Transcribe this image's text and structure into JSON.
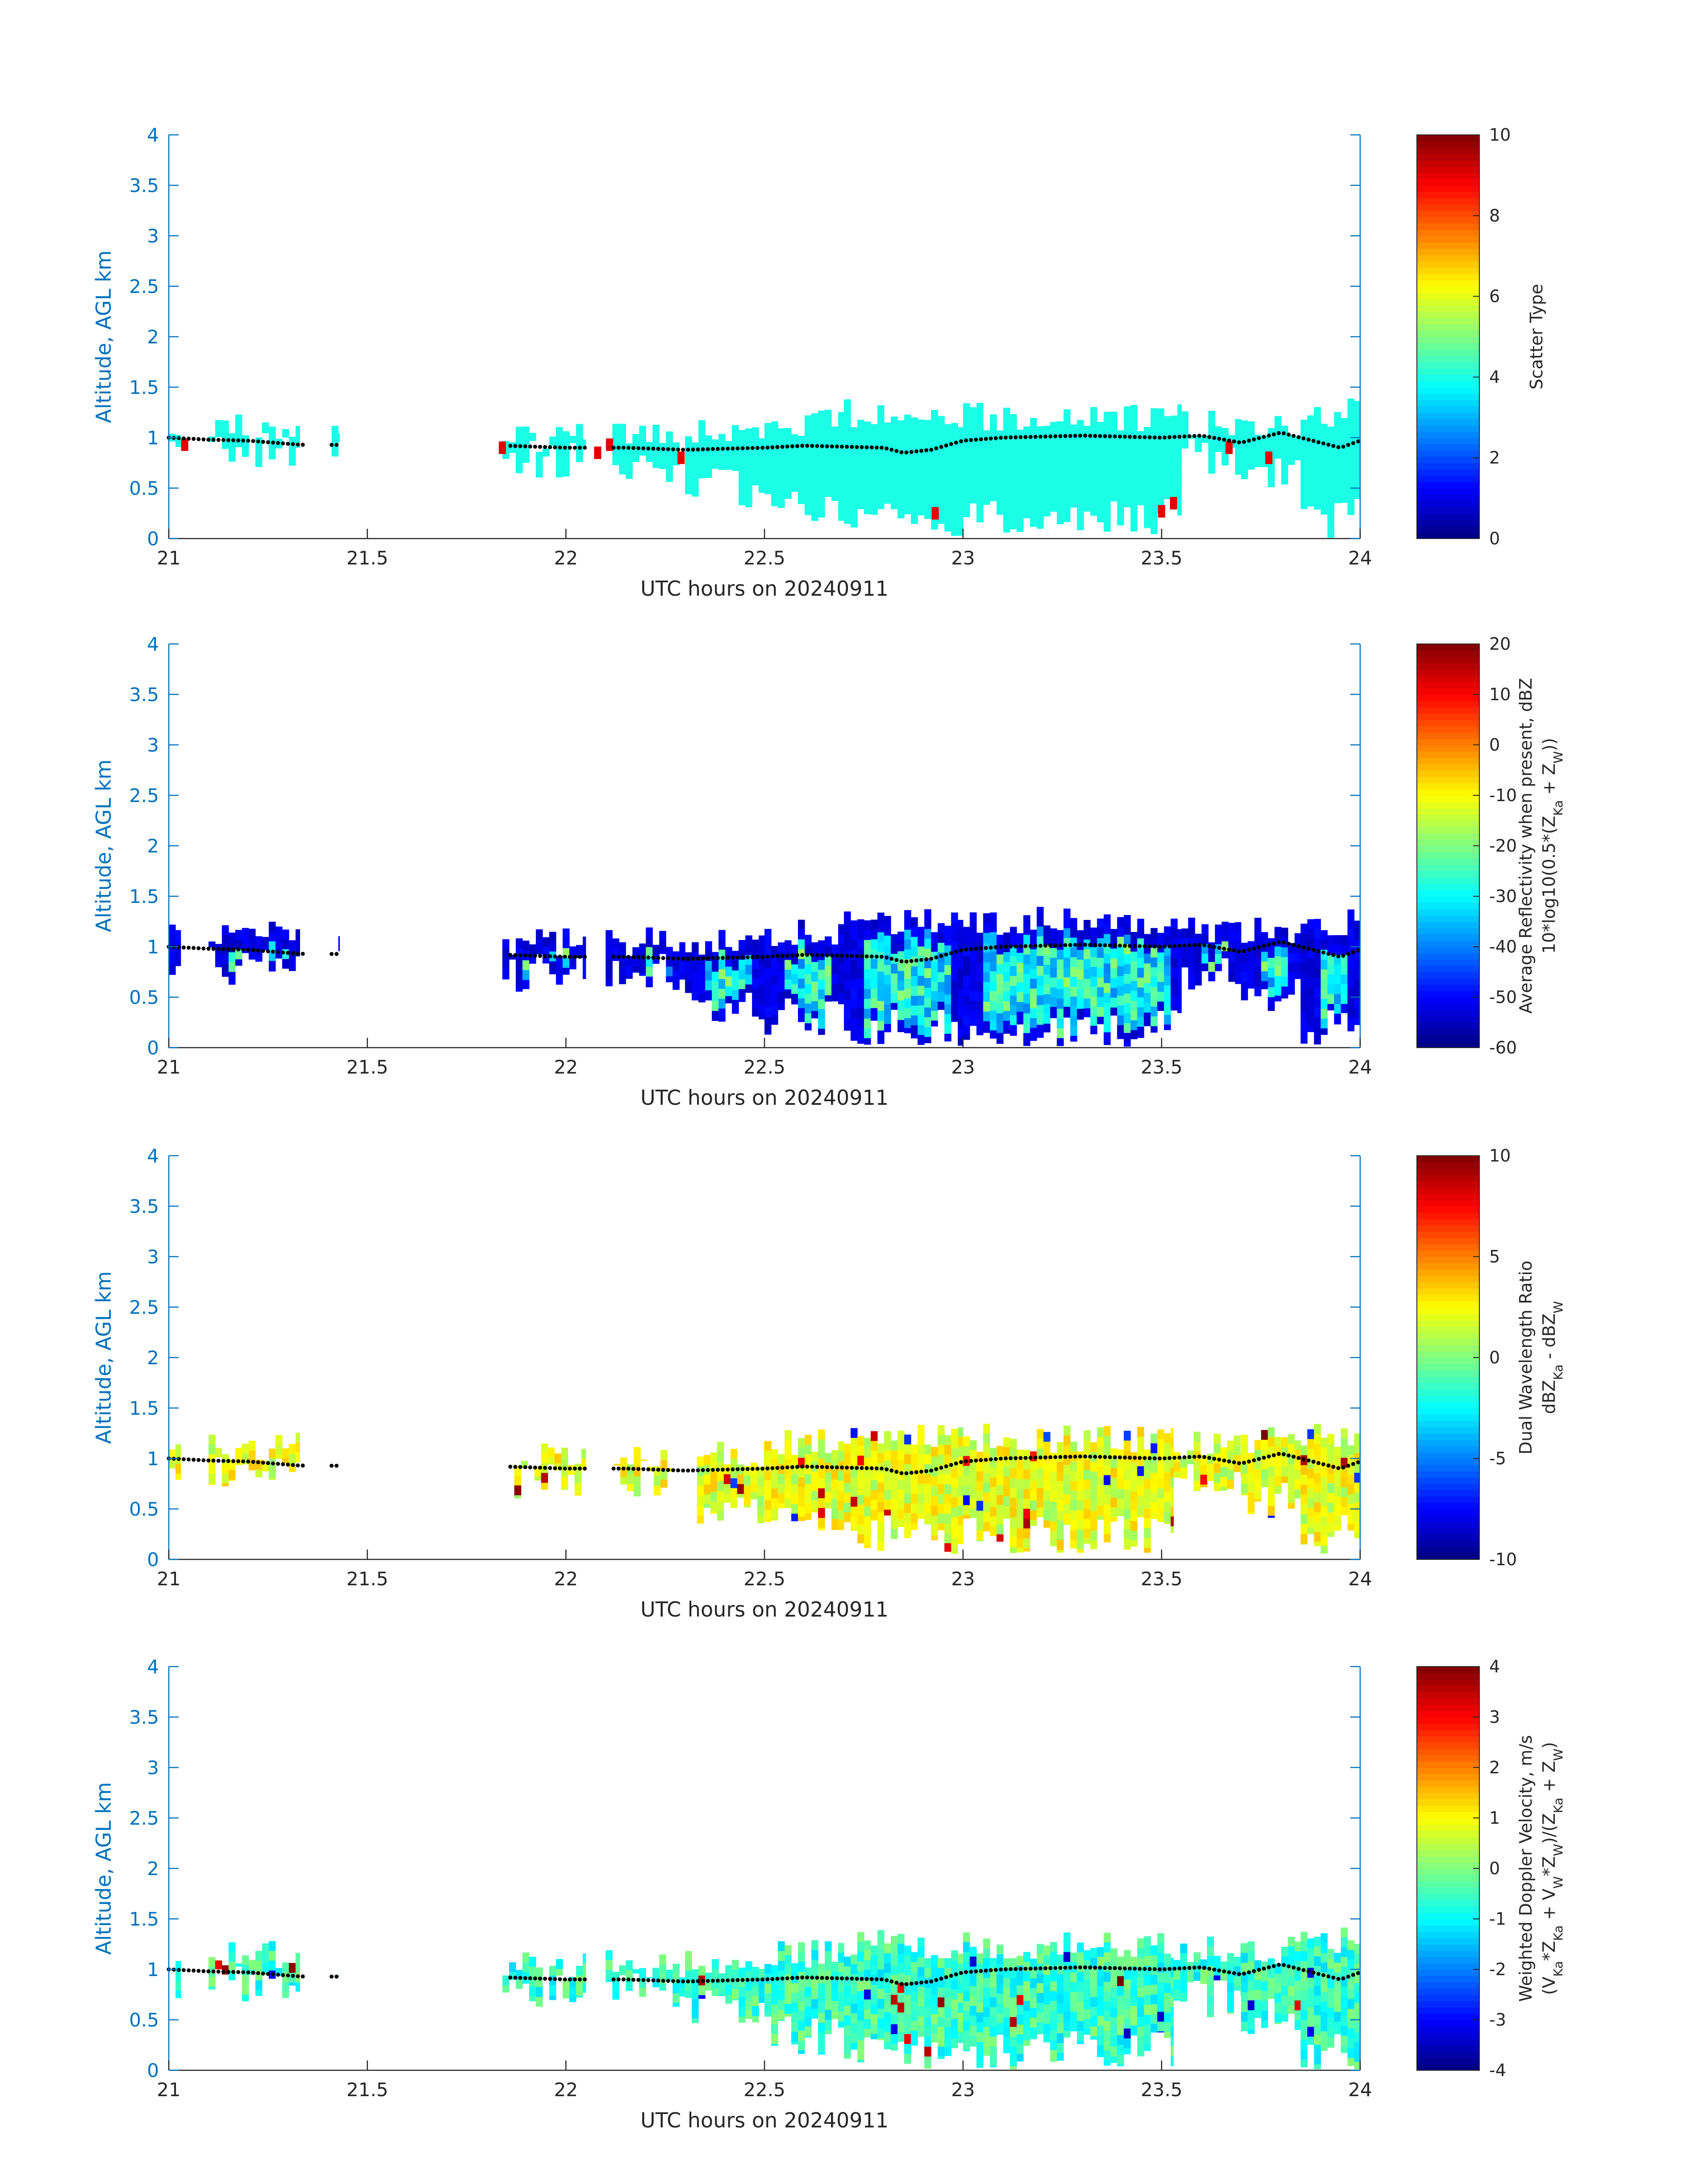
{
  "figure": {
    "date_label": "UTC hours on 20240911"
  },
  "chart_data": [
    {
      "type": "heatmap",
      "field": "scatter_type",
      "xlabel": "UTC hours on 20240911",
      "ylabel": "Altitude, AGL km",
      "xlim": [
        21,
        24
      ],
      "ylim": [
        0,
        4
      ],
      "xticks": [
        "21",
        "21.5",
        "22",
        "22.5",
        "23",
        "23.5",
        "24"
      ],
      "yticks": [
        "0",
        "0.5",
        "1",
        "1.5",
        "2",
        "2.5",
        "3",
        "3.5",
        "4"
      ],
      "colorbar": {
        "label_lines": [
          "Scatter Type"
        ],
        "range": [
          0,
          10
        ],
        "ticks": [
          "0",
          "2",
          "4",
          "6",
          "8",
          "10"
        ],
        "colormap": "jet"
      },
      "dominant_value": 4,
      "echo_regions": [
        {
          "x_start": 21.0,
          "x_end": 21.03,
          "bottom_km": 0.85,
          "top_km": 1.1
        },
        {
          "x_start": 21.1,
          "x_end": 21.33,
          "bottom_km": 0.88,
          "top_km": 1.1
        },
        {
          "x_start": 21.41,
          "x_end": 21.43,
          "bottom_km": 0.88,
          "top_km": 1.0
        },
        {
          "x_start": 21.84,
          "x_end": 22.05,
          "bottom_km": 0.8,
          "top_km": 1.0
        },
        {
          "x_start": 22.1,
          "x_end": 22.3,
          "bottom_km": 0.75,
          "top_km": 1.0
        },
        {
          "x_start": 22.3,
          "x_end": 22.5,
          "bottom_km": 0.5,
          "top_km": 1.05
        },
        {
          "x_start": 22.5,
          "x_end": 22.7,
          "bottom_km": 0.35,
          "top_km": 1.15
        },
        {
          "x_start": 22.7,
          "x_end": 23.0,
          "bottom_km": 0.2,
          "top_km": 1.25
        },
        {
          "x_start": 23.0,
          "x_end": 23.55,
          "bottom_km": 0.2,
          "top_km": 1.2
        },
        {
          "x_start": 23.55,
          "x_end": 23.7,
          "bottom_km": 0.8,
          "top_km": 1.15
        },
        {
          "x_start": 23.7,
          "x_end": 23.85,
          "bottom_km": 0.6,
          "top_km": 1.15
        },
        {
          "x_start": 23.85,
          "x_end": 24.0,
          "bottom_km": 0.2,
          "top_km": 1.25
        }
      ],
      "outliers": [
        {
          "x": 21.04,
          "y": 0.93,
          "value": 9
        },
        {
          "x": 21.84,
          "y": 0.9,
          "value": 9
        },
        {
          "x": 22.08,
          "y": 0.85,
          "value": 9
        },
        {
          "x": 22.11,
          "y": 0.93,
          "value": 9
        },
        {
          "x": 22.29,
          "y": 0.8,
          "value": 9
        },
        {
          "x": 22.93,
          "y": 0.25,
          "value": 9
        },
        {
          "x": 23.5,
          "y": 0.27,
          "value": 9
        },
        {
          "x": 23.53,
          "y": 0.35,
          "value": 9
        },
        {
          "x": 23.67,
          "y": 0.9,
          "value": 9
        },
        {
          "x": 23.77,
          "y": 0.8,
          "value": 9
        }
      ],
      "cloud_base_km": [
        [
          21.0,
          1.0
        ],
        [
          21.1,
          0.98
        ],
        [
          21.2,
          0.97
        ],
        [
          21.33,
          0.93
        ],
        [
          21.85,
          0.92
        ],
        [
          22.0,
          0.9
        ],
        [
          22.15,
          0.9
        ],
        [
          22.3,
          0.88
        ],
        [
          22.5,
          0.9
        ],
        [
          22.6,
          0.92
        ],
        [
          22.8,
          0.9
        ],
        [
          22.85,
          0.85
        ],
        [
          22.92,
          0.88
        ],
        [
          23.0,
          0.97
        ],
        [
          23.1,
          1.0
        ],
        [
          23.3,
          1.02
        ],
        [
          23.5,
          1.0
        ],
        [
          23.6,
          1.02
        ],
        [
          23.7,
          0.95
        ],
        [
          23.8,
          1.05
        ],
        [
          23.9,
          0.95
        ],
        [
          23.95,
          0.9
        ],
        [
          24.0,
          0.97
        ]
      ]
    },
    {
      "type": "heatmap",
      "field": "average_reflectivity",
      "xlabel": "UTC hours on 20240911",
      "ylabel": "Altitude, AGL km",
      "xlim": [
        21,
        24
      ],
      "ylim": [
        0,
        4
      ],
      "xticks": [
        "21",
        "21.5",
        "22",
        "22.5",
        "23",
        "23.5",
        "24"
      ],
      "yticks": [
        "0",
        "0.5",
        "1",
        "1.5",
        "2",
        "2.5",
        "3",
        "3.5",
        "4"
      ],
      "colorbar": {
        "label_lines": [
          "Average Reflectivity when present, dBZ",
          "10*log10(0.5*(Z",
          "Ka",
          " + Z",
          "W",
          "))"
        ],
        "range": [
          -60,
          20
        ],
        "ticks": [
          "-60",
          "-50",
          "-40",
          "-30",
          "-20",
          "-10",
          "0",
          "10",
          "20"
        ],
        "colormap": "jet"
      },
      "edge_value": -55,
      "core_value": -32,
      "echo_regions": [
        {
          "x_start": 21.0,
          "x_end": 21.03,
          "bottom_km": 0.85,
          "top_km": 1.1
        },
        {
          "x_start": 21.1,
          "x_end": 21.33,
          "bottom_km": 0.82,
          "top_km": 1.15
        },
        {
          "x_start": 21.41,
          "x_end": 21.43,
          "bottom_km": 0.88,
          "top_km": 1.0
        },
        {
          "x_start": 21.84,
          "x_end": 22.05,
          "bottom_km": 0.75,
          "top_km": 1.05
        },
        {
          "x_start": 22.1,
          "x_end": 22.3,
          "bottom_km": 0.75,
          "top_km": 1.05
        },
        {
          "x_start": 22.3,
          "x_end": 22.5,
          "bottom_km": 0.45,
          "top_km": 1.05
        },
        {
          "x_start": 22.5,
          "x_end": 22.7,
          "bottom_km": 0.3,
          "top_km": 1.15
        },
        {
          "x_start": 22.7,
          "x_end": 23.0,
          "bottom_km": 0.2,
          "top_km": 1.25
        },
        {
          "x_start": 23.0,
          "x_end": 23.55,
          "bottom_km": 0.2,
          "top_km": 1.25
        },
        {
          "x_start": 23.55,
          "x_end": 23.7,
          "bottom_km": 0.75,
          "top_km": 1.15
        },
        {
          "x_start": 23.7,
          "x_end": 23.85,
          "bottom_km": 0.55,
          "top_km": 1.15
        },
        {
          "x_start": 23.85,
          "x_end": 24.0,
          "bottom_km": 0.2,
          "top_km": 1.25
        }
      ]
    },
    {
      "type": "heatmap",
      "field": "dual_wavelength_ratio",
      "xlabel": "UTC hours on 20240911",
      "ylabel": "Altitude, AGL km",
      "xlim": [
        21,
        24
      ],
      "ylim": [
        0,
        4
      ],
      "xticks": [
        "21",
        "21.5",
        "22",
        "22.5",
        "23",
        "23.5",
        "24"
      ],
      "yticks": [
        "0",
        "0.5",
        "1",
        "1.5",
        "2",
        "2.5",
        "3",
        "3.5",
        "4"
      ],
      "colorbar": {
        "label_lines": [
          "Dual Wavelength Ratio",
          "dBZ",
          "Ka",
          " - dBZ",
          "W"
        ],
        "range": [
          -10,
          10
        ],
        "ticks": [
          "-10",
          "-5",
          "0",
          "5",
          "10"
        ],
        "colormap": "jet"
      },
      "typical_value": 2,
      "echo_regions": [
        {
          "x_start": 21.0,
          "x_end": 21.03,
          "bottom_km": 0.88,
          "top_km": 1.08
        },
        {
          "x_start": 21.1,
          "x_end": 21.33,
          "bottom_km": 0.88,
          "top_km": 1.12
        },
        {
          "x_start": 21.87,
          "x_end": 22.05,
          "bottom_km": 0.8,
          "top_km": 1.03
        },
        {
          "x_start": 22.12,
          "x_end": 22.27,
          "bottom_km": 0.8,
          "top_km": 1.03
        },
        {
          "x_start": 22.33,
          "x_end": 22.5,
          "bottom_km": 0.55,
          "top_km": 1.03
        },
        {
          "x_start": 22.5,
          "x_end": 22.7,
          "bottom_km": 0.4,
          "top_km": 1.15
        },
        {
          "x_start": 22.7,
          "x_end": 23.0,
          "bottom_km": 0.25,
          "top_km": 1.23
        },
        {
          "x_start": 23.0,
          "x_end": 23.53,
          "bottom_km": 0.25,
          "top_km": 1.2
        },
        {
          "x_start": 23.53,
          "x_end": 23.7,
          "bottom_km": 0.8,
          "top_km": 1.15
        },
        {
          "x_start": 23.7,
          "x_end": 23.85,
          "bottom_km": 0.6,
          "top_km": 1.2
        },
        {
          "x_start": 23.85,
          "x_end": 24.0,
          "bottom_km": 0.25,
          "top_km": 1.25
        }
      ]
    },
    {
      "type": "heatmap",
      "field": "weighted_doppler_velocity",
      "xlabel": "UTC hours on 20240911",
      "ylabel": "Altitude, AGL km",
      "xlim": [
        21,
        24
      ],
      "ylim": [
        0,
        4
      ],
      "xticks": [
        "21",
        "21.5",
        "22",
        "22.5",
        "23",
        "23.5",
        "24"
      ],
      "yticks": [
        "0",
        "0.5",
        "1",
        "1.5",
        "2",
        "2.5",
        "3",
        "3.5",
        "4"
      ],
      "colorbar": {
        "label_lines": [
          "Weighted Doppler Velocity, m/s",
          "(V",
          "Ka",
          "*Z",
          "Ka",
          " + V",
          "W",
          "*Z",
          "W",
          ")/(Z",
          "Ka",
          " + Z",
          "W",
          ")"
        ],
        "range": [
          -4,
          4
        ],
        "ticks": [
          "-4",
          "-3",
          "-2",
          "-1",
          "0",
          "1",
          "2",
          "3",
          "4"
        ],
        "colormap": "jet"
      },
      "typical_value": -0.6,
      "echo_regions": [
        {
          "x_start": 21.0,
          "x_end": 21.03,
          "bottom_km": 0.85,
          "top_km": 1.12
        },
        {
          "x_start": 21.1,
          "x_end": 21.33,
          "bottom_km": 0.85,
          "top_km": 1.15
        },
        {
          "x_start": 21.41,
          "x_end": 21.43,
          "bottom_km": 0.88,
          "top_km": 1.0
        },
        {
          "x_start": 21.84,
          "x_end": 22.05,
          "bottom_km": 0.75,
          "top_km": 1.05
        },
        {
          "x_start": 22.1,
          "x_end": 22.3,
          "bottom_km": 0.8,
          "top_km": 1.05
        },
        {
          "x_start": 22.3,
          "x_end": 22.5,
          "bottom_km": 0.6,
          "top_km": 1.05
        },
        {
          "x_start": 22.5,
          "x_end": 22.7,
          "bottom_km": 0.35,
          "top_km": 1.15
        },
        {
          "x_start": 22.7,
          "x_end": 23.0,
          "bottom_km": 0.2,
          "top_km": 1.25
        },
        {
          "x_start": 23.0,
          "x_end": 23.53,
          "bottom_km": 0.2,
          "top_km": 1.25
        },
        {
          "x_start": 23.53,
          "x_end": 23.7,
          "bottom_km": 0.7,
          "top_km": 1.2
        },
        {
          "x_start": 23.7,
          "x_end": 23.85,
          "bottom_km": 0.55,
          "top_km": 1.2
        },
        {
          "x_start": 23.85,
          "x_end": 24.0,
          "bottom_km": 0.2,
          "top_km": 1.3
        }
      ]
    }
  ]
}
